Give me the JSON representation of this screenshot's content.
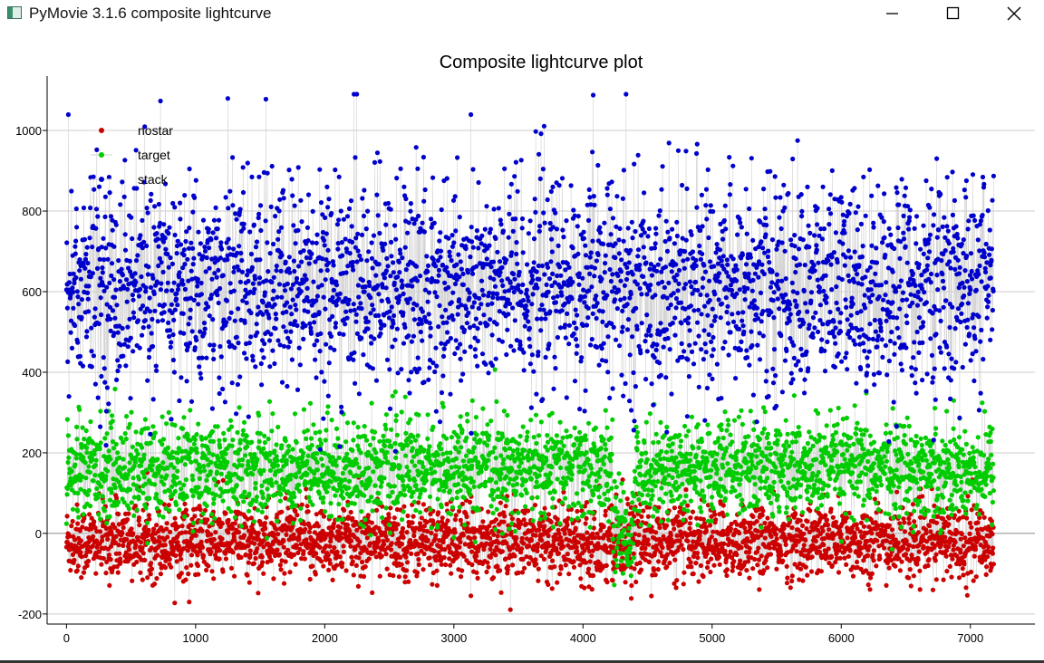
{
  "window": {
    "title": "PyMovie 3.1.6 composite lightcurve",
    "controls": {
      "minimize": "minimize-icon",
      "maximize": "maximize-icon",
      "close": "close-icon"
    }
  },
  "chart_data": {
    "type": "scatter",
    "title": "Composite lightcurve plot",
    "xlabel": "",
    "ylabel": "",
    "xlim": [
      -150,
      7500
    ],
    "ylim": [
      -225,
      1135
    ],
    "x_ticks": [
      0,
      1000,
      2000,
      3000,
      4000,
      5000,
      6000,
      7000
    ],
    "y_ticks": [
      -200,
      0,
      200,
      400,
      600,
      800,
      1000
    ],
    "grid": "horizontal",
    "legend_position": "top-left",
    "series": [
      {
        "name": "nostar",
        "color": "#cc0000",
        "connector_color": "#d3d3d3",
        "x_range": [
          0,
          7180
        ],
        "points": 3000,
        "mean": -20,
        "spread": 45,
        "summary": "noise scattered around 0, mostly between -150 and 100"
      },
      {
        "name": "target",
        "color": "#00cc00",
        "connector_color": "#d3d3d3",
        "x_range": [
          0,
          7180
        ],
        "points": 3000,
        "mean": 160,
        "spread": 60,
        "event": {
          "start": 4230,
          "end": 4400,
          "level": 0
        },
        "summary": "mostly between 50 and 300, with a dip to about 0 between x = 4230 and 4400"
      },
      {
        "name": "stack",
        "color": "#0000cc",
        "connector_color": "#d3d3d3",
        "x_range": [
          0,
          7180
        ],
        "points": 3000,
        "mean": 610,
        "spread": 130,
        "summary": "mostly between 300 and 900, peaking above 1000"
      }
    ]
  }
}
